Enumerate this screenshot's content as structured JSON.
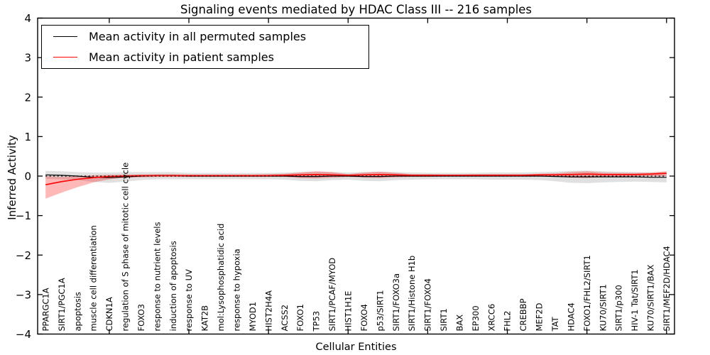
{
  "figure": {
    "title": "Signaling events mediated by HDAC Class III -- 216 samples",
    "xlabel": "Cellular Entities",
    "ylabel": "Inferred Activity",
    "legend": [
      {
        "label": "Mean activity in all permuted samples",
        "color": "#000000"
      },
      {
        "label": "Mean activity in patient samples",
        "color": "#ff0000"
      }
    ]
  },
  "chart_data": {
    "type": "line",
    "title": "Signaling events mediated by HDAC Class III -- 216 samples",
    "xlabel": "Cellular Entities",
    "ylabel": "Inferred Activity",
    "ylim": [
      -4,
      4
    ],
    "yticks": [
      -4,
      -3,
      -2,
      -1,
      0,
      1,
      2,
      3,
      4
    ],
    "xtick_indices": [
      4,
      9,
      14,
      19,
      24,
      29,
      34,
      39
    ],
    "grid": false,
    "legend_position": "upper left",
    "categories": [
      "PPARGC1A",
      "SIRT1/PGC1A",
      "apoptosis",
      "muscle cell differentiation",
      "CDKN1A",
      "regulation of S phase of mitotic cell cycle",
      "FOXO3",
      "response to nutrient levels",
      "induction of apoptosis",
      "response to UV",
      "KAT2B",
      "mol:Lysophosphatidic acid",
      "response to hypoxia",
      "MYOD1",
      "HIST2H4A",
      "ACSS2",
      "FOXO1",
      "TP53",
      "SIRT1/PCAF/MYOD",
      "HIST1H1E",
      "FOXO4",
      "p53/SIRT1",
      "SIRT1/FOXO3a",
      "SIRT1/Histone H1b",
      "SIRT1/FOXO4",
      "SIRT1",
      "BAX",
      "EP300",
      "XRCC6",
      "FHL2",
      "CREBBP",
      "MEF2D",
      "TAT",
      "HDAC4",
      "FOXO1/FHL2/SIRT1",
      "KU70/SIRT1",
      "SIRT1/p300",
      "HIV-1 Tat/SIRT1",
      "KU70/SIRT1/BAX",
      "SIRT1/MEF2D/HDAC4"
    ],
    "series": [
      {
        "name": "Mean activity in all permuted samples",
        "color": "#000000",
        "style": "solid",
        "width": 1.2,
        "values": [
          0.03,
          0.02,
          0.0,
          -0.03,
          -0.04,
          -0.02,
          0.0,
          0.01,
          0.01,
          0.0,
          0.0,
          0.0,
          0.0,
          0.0,
          0.0,
          0.0,
          -0.01,
          -0.01,
          0.0,
          0.0,
          -0.01,
          -0.01,
          0.0,
          0.0,
          0.0,
          0.0,
          0.0,
          0.0,
          0.0,
          0.0,
          0.0,
          0.0,
          -0.01,
          -0.02,
          -0.02,
          -0.02,
          -0.02,
          -0.02,
          -0.03,
          -0.03
        ]
      },
      {
        "name": "Mean activity in patient samples",
        "color": "#ff0000",
        "style": "solid",
        "width": 1.6,
        "values": [
          -0.22,
          -0.14,
          -0.08,
          -0.04,
          -0.01,
          0.0,
          0.01,
          0.01,
          0.01,
          0.01,
          0.01,
          0.01,
          0.01,
          0.01,
          0.01,
          0.02,
          0.03,
          0.04,
          0.03,
          0.02,
          0.03,
          0.04,
          0.03,
          0.02,
          0.02,
          0.02,
          0.02,
          0.02,
          0.02,
          0.02,
          0.02,
          0.03,
          0.03,
          0.04,
          0.05,
          0.04,
          0.04,
          0.04,
          0.05,
          0.07
        ]
      },
      {
        "name": "zero-reference",
        "color": "#000000",
        "style": "dashed",
        "width": 1.2,
        "values": [
          0,
          0,
          0,
          0,
          0,
          0,
          0,
          0,
          0,
          0,
          0,
          0,
          0,
          0,
          0,
          0,
          0,
          0,
          0,
          0,
          0,
          0,
          0,
          0,
          0,
          0,
          0,
          0,
          0,
          0,
          0,
          0,
          0,
          0,
          0,
          0,
          0,
          0,
          0,
          0
        ]
      }
    ],
    "bands": [
      {
        "name": "permuted-samples-range",
        "color": "#000000",
        "opacity": 0.12,
        "upper": [
          0.13,
          0.12,
          0.1,
          0.09,
          0.09,
          0.1,
          0.1,
          0.1,
          0.1,
          0.08,
          0.08,
          0.08,
          0.08,
          0.08,
          0.08,
          0.09,
          0.1,
          0.11,
          0.1,
          0.09,
          0.1,
          0.11,
          0.1,
          0.09,
          0.08,
          0.08,
          0.08,
          0.08,
          0.09,
          0.09,
          0.09,
          0.1,
          0.11,
          0.13,
          0.14,
          0.12,
          0.11,
          0.1,
          0.09,
          0.1
        ],
        "lower": [
          -0.07,
          -0.08,
          -0.1,
          -0.15,
          -0.17,
          -0.14,
          -0.1,
          -0.08,
          -0.08,
          -0.08,
          -0.08,
          -0.08,
          -0.08,
          -0.08,
          -0.08,
          -0.09,
          -0.12,
          -0.13,
          -0.1,
          -0.09,
          -0.12,
          -0.13,
          -0.1,
          -0.09,
          -0.08,
          -0.08,
          -0.08,
          -0.08,
          -0.09,
          -0.09,
          -0.09,
          -0.1,
          -0.13,
          -0.17,
          -0.18,
          -0.16,
          -0.15,
          -0.14,
          -0.15,
          -0.16
        ]
      },
      {
        "name": "patient-samples-range",
        "color": "#ff0000",
        "opacity": 0.28,
        "upper": [
          0.0,
          -0.02,
          0.0,
          0.02,
          0.03,
          0.04,
          0.04,
          0.05,
          0.05,
          0.04,
          0.04,
          0.04,
          0.04,
          0.04,
          0.05,
          0.06,
          0.09,
          0.12,
          0.1,
          0.05,
          0.09,
          0.11,
          0.08,
          0.05,
          0.05,
          0.04,
          0.04,
          0.05,
          0.05,
          0.05,
          0.05,
          0.06,
          0.07,
          0.1,
          0.12,
          0.09,
          0.08,
          0.08,
          0.09,
          0.12
        ],
        "lower": [
          -0.57,
          -0.42,
          -0.28,
          -0.16,
          -0.08,
          -0.04,
          -0.03,
          -0.02,
          -0.02,
          -0.02,
          -0.02,
          -0.02,
          -0.02,
          -0.02,
          -0.02,
          -0.02,
          -0.05,
          -0.06,
          -0.04,
          -0.02,
          -0.04,
          -0.05,
          -0.03,
          -0.02,
          -0.02,
          -0.01,
          -0.01,
          -0.01,
          -0.01,
          -0.01,
          -0.01,
          -0.01,
          -0.01,
          -0.04,
          -0.05,
          -0.02,
          -0.01,
          0.0,
          0.0,
          0.0
        ]
      }
    ]
  }
}
